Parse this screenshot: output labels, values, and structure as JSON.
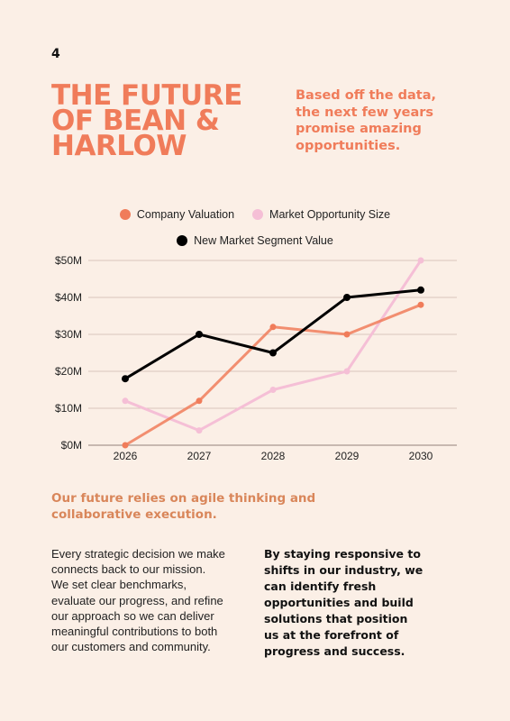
{
  "page": {
    "number": "4",
    "title_lines": [
      "THE FUTURE",
      "OF BEAN &",
      "HARLOW"
    ],
    "subtitle_lines": [
      "Based off the data,",
      "the next few years",
      "promise amazing",
      "opportunities."
    ],
    "callout_lines": [
      "Our future relies on agile thinking and",
      "collaborative execution."
    ],
    "body_left_lines": [
      "Every strategic decision we make",
      "connects back to our mission.",
      "We set clear benchmarks,",
      "evaluate our progress, and refine",
      "our approach so we can deliver",
      "meaningful contributions to both",
      "our customers and community."
    ],
    "body_right_lines": [
      "By staying responsive to",
      "shifts in our industry, we",
      "can identify fresh",
      "opportunities and build",
      "solutions that position",
      "us at the forefront of",
      "progress and success."
    ]
  },
  "colors": {
    "background": "#FBEFE6",
    "accent": "#F07C5A",
    "callout": "#D9865A",
    "grid": "#CDB8AE"
  },
  "chart_data": {
    "type": "line",
    "x": [
      "2026",
      "2027",
      "2028",
      "2029",
      "2030"
    ],
    "ylim": [
      0,
      50
    ],
    "y_ticks": [
      "$0M",
      "$10M",
      "$20M",
      "$30M",
      "$40M",
      "$50M"
    ],
    "grid": true,
    "legend_position": "top",
    "series": [
      {
        "name": "Company Valuation",
        "color": "#F07C5A",
        "values": [
          0,
          12,
          32,
          30,
          38
        ]
      },
      {
        "name": "Market Opportunity Size",
        "color": "#F5BFD6",
        "values": [
          12,
          4,
          15,
          20,
          50
        ]
      },
      {
        "name": "New Market Segment Value",
        "color": "#000000",
        "values": [
          18,
          30,
          25,
          40,
          42
        ]
      }
    ]
  }
}
